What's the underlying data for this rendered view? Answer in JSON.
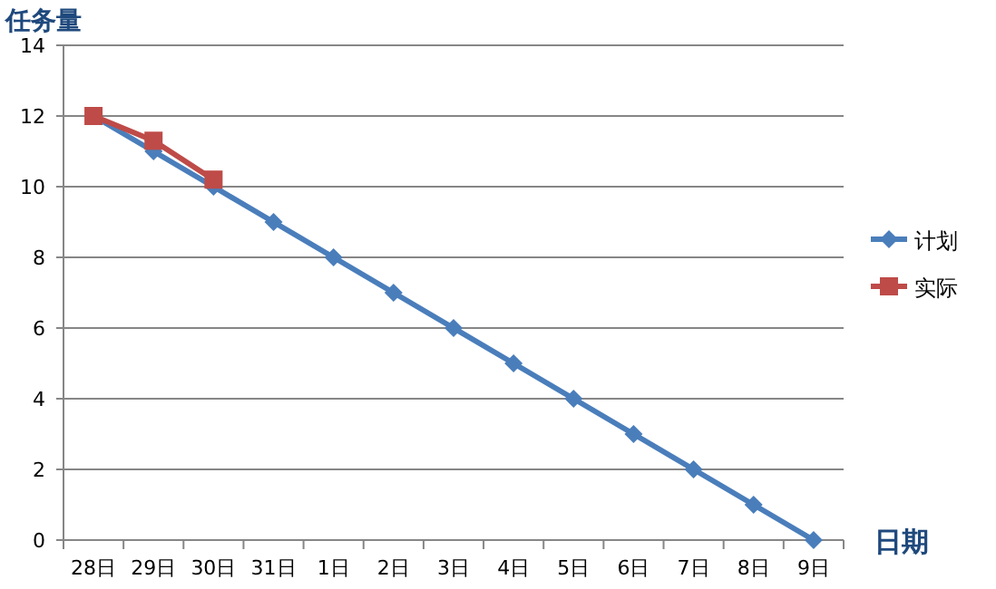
{
  "chart_data": {
    "type": "line",
    "ylabel": "任务量",
    "xlabel": "日期",
    "categories": [
      "28日",
      "29日",
      "30日",
      "31日",
      "1日",
      "2日",
      "3日",
      "4日",
      "5日",
      "6日",
      "7日",
      "8日",
      "9日"
    ],
    "series": [
      {
        "name": "计划",
        "color": "#4a7ebb",
        "marker": "diamond",
        "values": [
          12,
          11,
          10,
          9,
          8,
          7,
          6,
          5,
          4,
          3,
          2,
          1,
          0
        ]
      },
      {
        "name": "实际",
        "color": "#be4b48",
        "marker": "square",
        "values": [
          12,
          11.3,
          10.2,
          null,
          null,
          null,
          null,
          null,
          null,
          null,
          null,
          null,
          null
        ]
      }
    ],
    "ylim": [
      0,
      14
    ],
    "yticks": [
      0,
      2,
      4,
      6,
      8,
      10,
      12,
      14
    ],
    "grid": "y",
    "legend": "right"
  }
}
